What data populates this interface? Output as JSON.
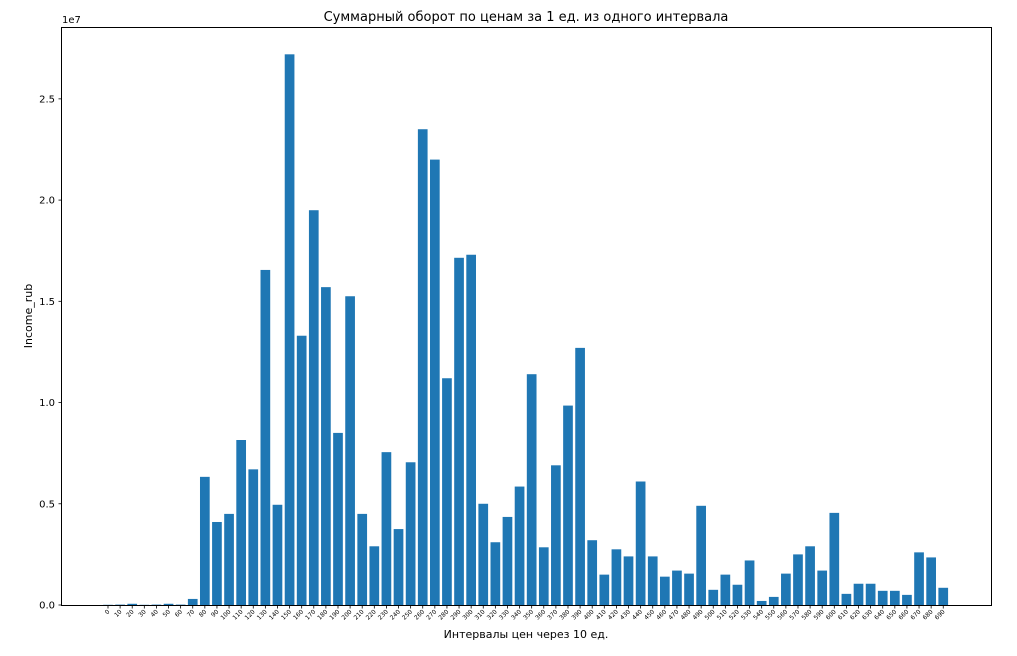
{
  "chart_data": {
    "type": "bar",
    "title": "Суммарный оборот по ценам за 1 ед. из одного интервала",
    "xlabel": "Интервалы цен через 10 ед.",
    "ylabel": "Income_rub",
    "y_offset_label": "1e7",
    "y_scale": 10000000,
    "ylim": [
      0,
      28500000
    ],
    "yticks": [
      0,
      5000000,
      10000000,
      15000000,
      20000000,
      25000000
    ],
    "ytick_labels": [
      "0.0",
      "0.5",
      "1.0",
      "1.5",
      "2.0",
      "2.5"
    ],
    "bar_color": "#1f77b4",
    "grid": false,
    "categories": [
      "0",
      "10",
      "20",
      "30",
      "40",
      "50",
      "60",
      "70",
      "80",
      "90",
      "100",
      "110",
      "120",
      "130",
      "140",
      "150",
      "160",
      "170",
      "180",
      "190",
      "200",
      "210",
      "220",
      "230",
      "240",
      "250",
      "260",
      "270",
      "280",
      "290",
      "300",
      "310",
      "320",
      "330",
      "340",
      "350",
      "360",
      "370",
      "380",
      "390",
      "400",
      "410",
      "420",
      "430",
      "440",
      "450",
      "460",
      "470",
      "480",
      "490",
      "500",
      "510",
      "520",
      "530",
      "540",
      "550",
      "560",
      "570",
      "580",
      "590",
      "600",
      "610",
      "620",
      "630",
      "640",
      "650",
      "660",
      "670",
      "680",
      "690"
    ],
    "values": [
      10000,
      20000,
      60000,
      10000,
      20000,
      60000,
      20000,
      300000,
      6330000,
      4100000,
      4500000,
      8150000,
      6700000,
      16550000,
      4950000,
      27200000,
      13300000,
      19500000,
      15700000,
      8500000,
      15250000,
      4500000,
      2900000,
      7550000,
      3750000,
      7050000,
      23500000,
      22000000,
      11200000,
      17150000,
      17300000,
      5000000,
      3100000,
      4350000,
      5850000,
      11400000,
      2850000,
      6900000,
      9850000,
      12700000,
      3200000,
      1500000,
      2750000,
      2400000,
      6100000,
      2400000,
      1400000,
      1700000,
      1550000,
      4900000,
      750000,
      1500000,
      1000000,
      2200000,
      200000,
      400000,
      1550000,
      2500000,
      2900000,
      1700000,
      4550000,
      550000,
      1050000,
      1050000,
      700000,
      700000,
      500000,
      2600000,
      2350000,
      850000
    ]
  }
}
